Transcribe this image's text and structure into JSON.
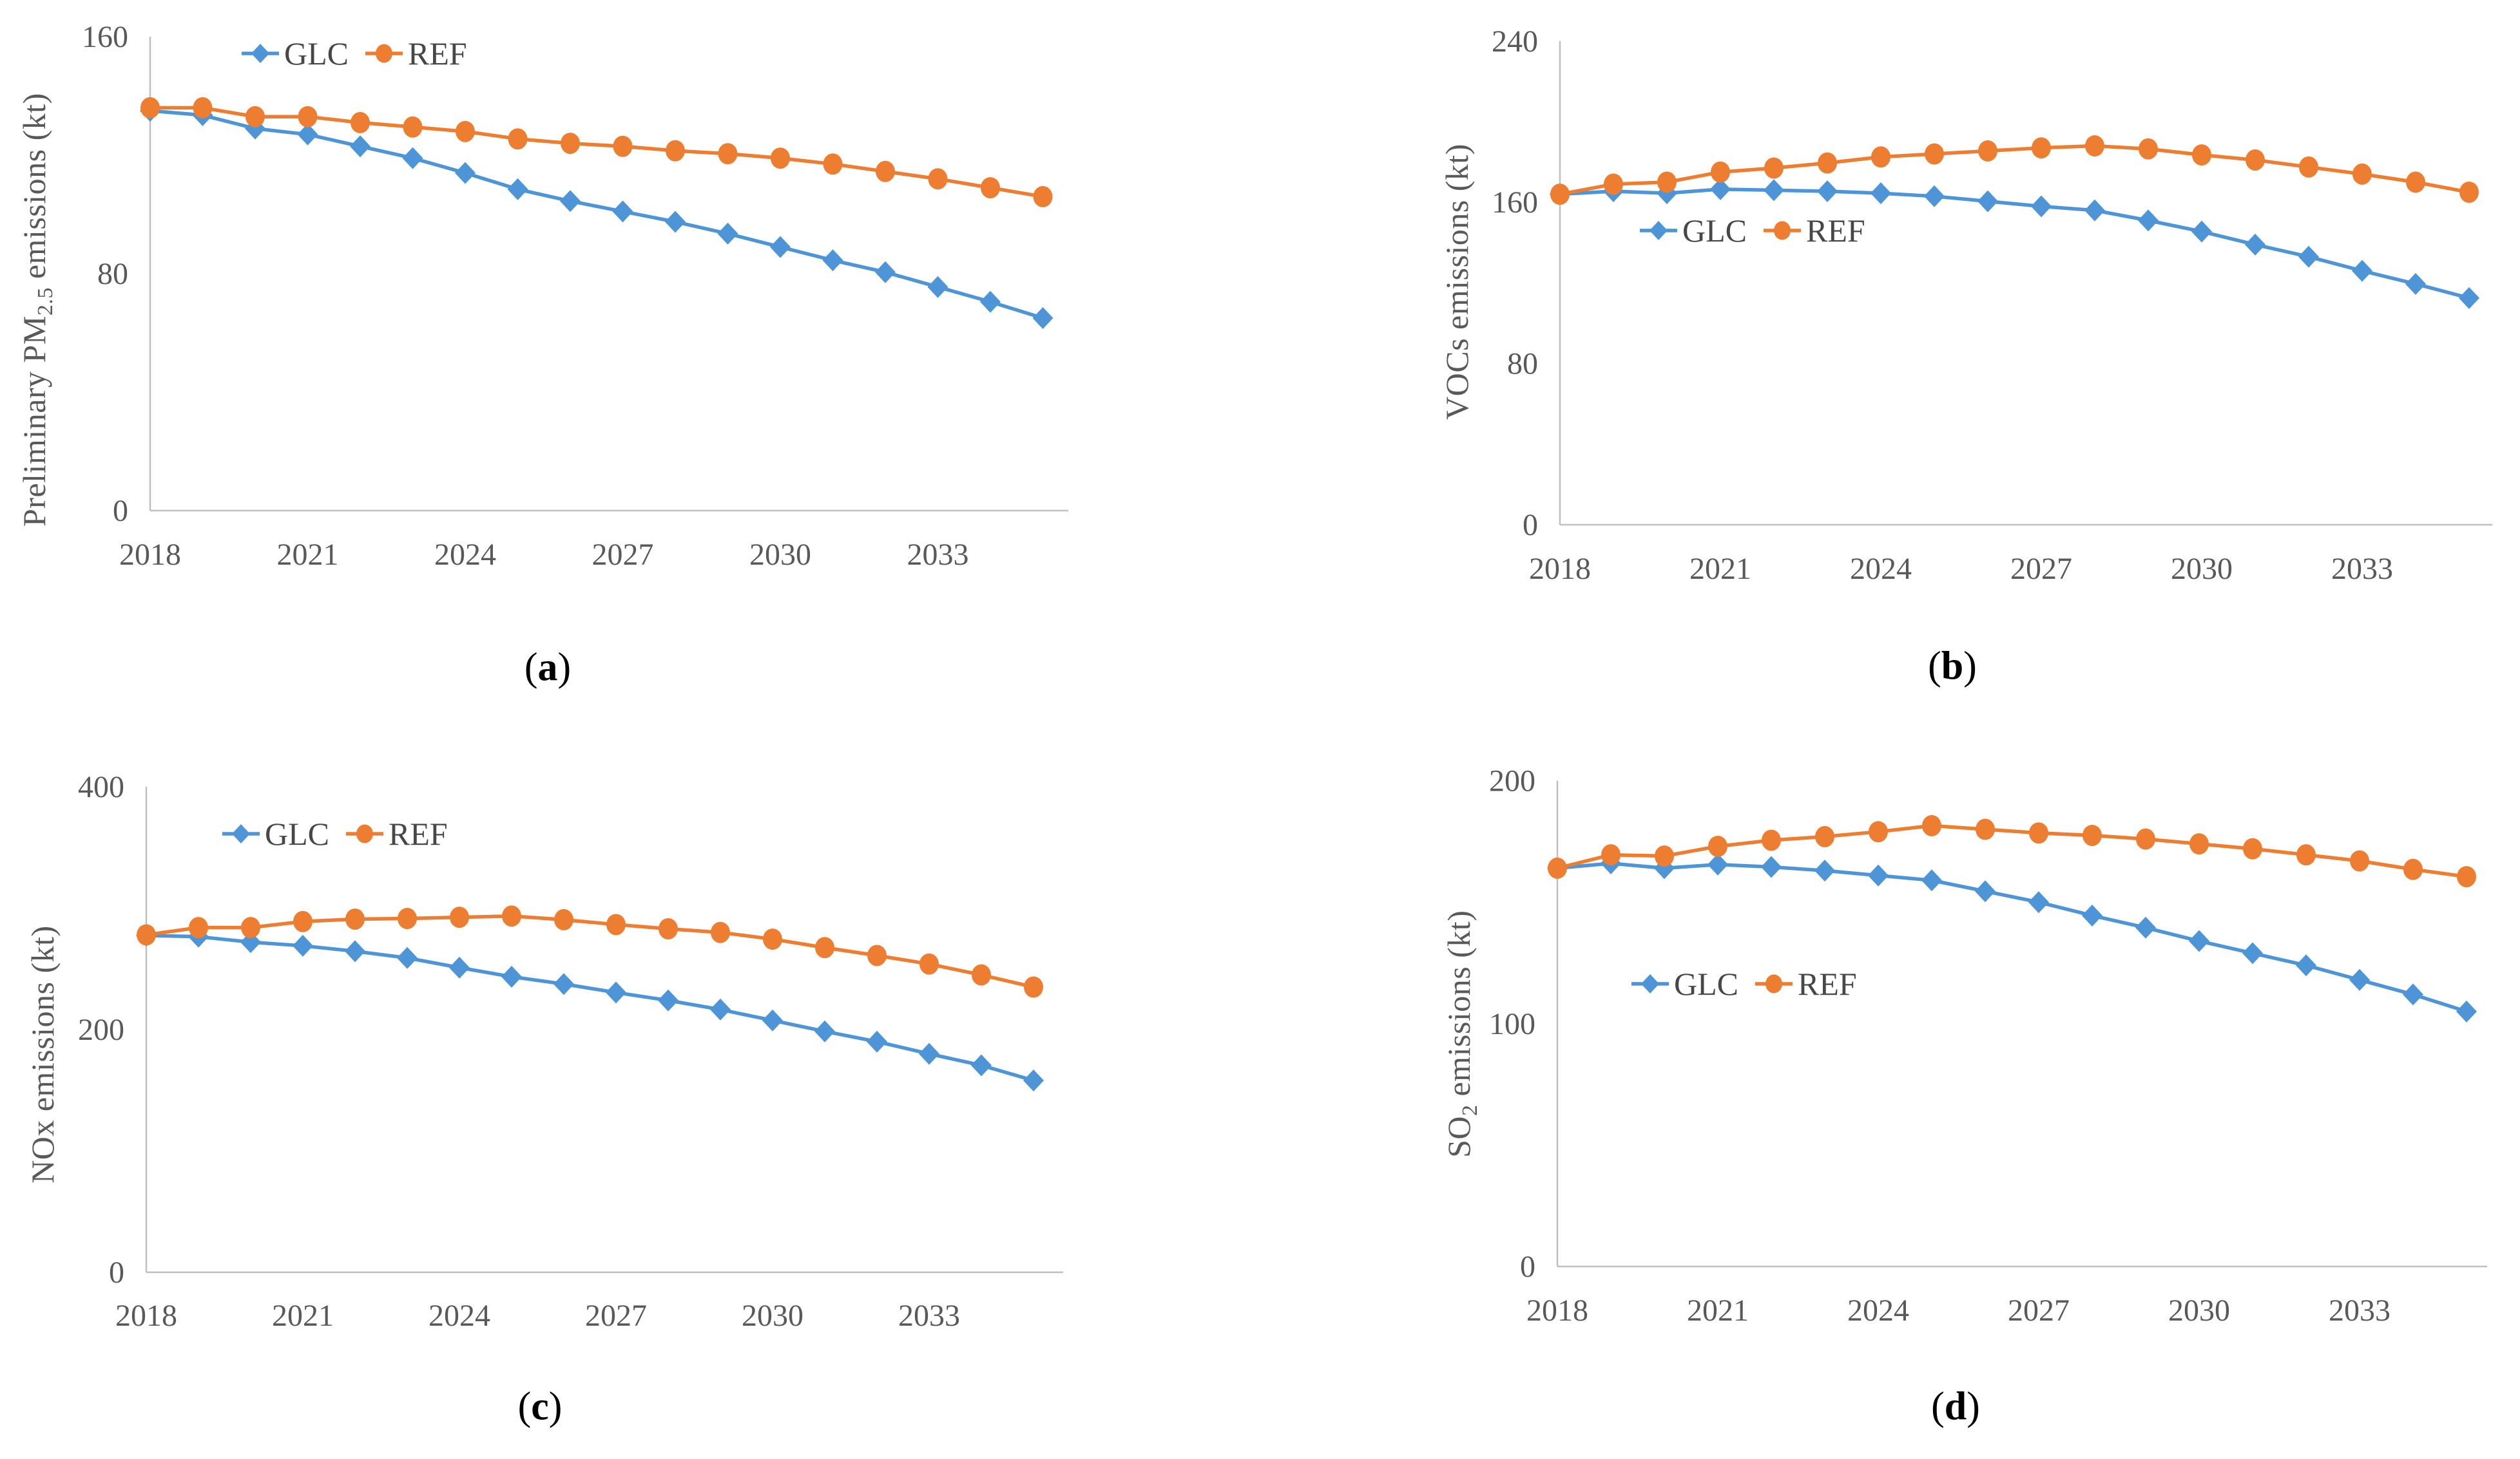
{
  "colors": {
    "glc": "#4E95D7",
    "ref": "#ED7D31",
    "axis_line": "#BFBFBF",
    "tick_text": "#595959",
    "legend_text": "#474747",
    "caption_text": "#000000",
    "background": "#FFFFFF"
  },
  "chart_data": [
    {
      "id": "a",
      "type": "line",
      "ylabel": "Preliminary PM2.5 emissions (kt)",
      "ylabel_parts": {
        "pre": "Preliminary PM",
        "sub": "2.5",
        "suf": " emissions (kt)"
      },
      "caption_parts": {
        "pre": "(",
        "letter": "a",
        "suf": ")"
      },
      "xlabel": "",
      "x": [
        2018,
        2019,
        2020,
        2021,
        2022,
        2023,
        2024,
        2025,
        2026,
        2027,
        2028,
        2029,
        2030,
        2031,
        2032,
        2033,
        2034,
        2035
      ],
      "xticks": [
        2018,
        2021,
        2024,
        2027,
        2030,
        2033
      ],
      "yticks": [
        0,
        80,
        160
      ],
      "ylim": [
        0,
        160
      ],
      "grid": false,
      "legend_position": "inside-top-left",
      "series": [
        {
          "name": "GLC",
          "marker": "diamond",
          "values": [
            135,
            133.5,
            129,
            127,
            123,
            119,
            114,
            108.5,
            104.5,
            101,
            97.5,
            93.5,
            89,
            84.5,
            80.5,
            75.5,
            70.5,
            65
          ]
        },
        {
          "name": "REF",
          "marker": "circle",
          "values": [
            136,
            136,
            133,
            133,
            131,
            129.5,
            128,
            125.5,
            124,
            123,
            121.5,
            120.5,
            119,
            117,
            114.5,
            112,
            109,
            106
          ]
        }
      ]
    },
    {
      "id": "b",
      "type": "line",
      "ylabel": "VOCs emissions (kt)",
      "ylabel_parts": {
        "pre": "VOCs emissions (kt)",
        "sub": "",
        "suf": ""
      },
      "caption_parts": {
        "pre": "(",
        "letter": "b",
        "suf": ")"
      },
      "xlabel": "",
      "x": [
        2018,
        2019,
        2020,
        2021,
        2022,
        2023,
        2024,
        2025,
        2026,
        2027,
        2028,
        2029,
        2030,
        2031,
        2032,
        2033,
        2034,
        2035
      ],
      "xticks": [
        2018,
        2021,
        2024,
        2027,
        2030,
        2033
      ],
      "yticks": [
        0,
        80,
        160,
        240
      ],
      "ylim": [
        0,
        240
      ],
      "grid": false,
      "legend_position": "inside-left-middle",
      "series": [
        {
          "name": "GLC",
          "marker": "diamond",
          "values": [
            164,
            165.5,
            164.5,
            166.5,
            166,
            165.5,
            164.5,
            163,
            160.5,
            158,
            156,
            151,
            145.5,
            139,
            133,
            126,
            119.5,
            112.5
          ]
        },
        {
          "name": "REF",
          "marker": "circle",
          "values": [
            164,
            169,
            170,
            175,
            177,
            179.5,
            182.5,
            184,
            185.5,
            187,
            188,
            186.5,
            183.5,
            181,
            177.5,
            174,
            170,
            165
          ]
        }
      ]
    },
    {
      "id": "c",
      "type": "line",
      "ylabel": "NOx emissions (kt)",
      "ylabel_parts": {
        "pre": "NOx emissions (kt)",
        "sub": "",
        "suf": ""
      },
      "caption_parts": {
        "pre": "(",
        "letter": "c",
        "suf": ")"
      },
      "xlabel": "",
      "x": [
        2018,
        2019,
        2020,
        2021,
        2022,
        2023,
        2024,
        2025,
        2026,
        2027,
        2028,
        2029,
        2030,
        2031,
        2032,
        2033,
        2034,
        2035
      ],
      "xticks": [
        2018,
        2021,
        2024,
        2027,
        2030,
        2033
      ],
      "yticks": [
        0,
        200,
        400
      ],
      "ylim": [
        0,
        400
      ],
      "grid": false,
      "legend_position": "inside-top-left",
      "series": [
        {
          "name": "GLC",
          "marker": "diamond",
          "values": [
            277.5,
            276.5,
            272,
            269,
            264.5,
            259,
            251,
            243.5,
            237.5,
            230.5,
            224,
            216.5,
            207.5,
            198.5,
            190,
            180,
            170.5,
            158
          ]
        },
        {
          "name": "REF",
          "marker": "circle",
          "values": [
            278,
            284,
            284,
            289,
            291,
            291.5,
            292.5,
            293.5,
            290.5,
            286.5,
            283,
            280,
            274.5,
            267.5,
            261,
            254,
            245,
            235
          ]
        }
      ]
    },
    {
      "id": "d",
      "type": "line",
      "ylabel": "SO2 emissions (kt)",
      "ylabel_parts": {
        "pre": "SO",
        "sub": "2",
        "suf": " emissions (kt)"
      },
      "caption_parts": {
        "pre": "(",
        "letter": "d",
        "suf": ")"
      },
      "xlabel": "",
      "x": [
        2018,
        2019,
        2020,
        2021,
        2022,
        2023,
        2024,
        2025,
        2026,
        2027,
        2028,
        2029,
        2030,
        2031,
        2032,
        2033,
        2034,
        2035
      ],
      "xticks": [
        2018,
        2021,
        2024,
        2027,
        2030,
        2033
      ],
      "yticks": [
        0,
        100,
        200
      ],
      "ylim": [
        0,
        200
      ],
      "grid": false,
      "legend_position": "inside-left-middle",
      "series": [
        {
          "name": "GLC",
          "marker": "diamond",
          "values": [
            164,
            166,
            164,
            165.5,
            164.5,
            163,
            161,
            159,
            154.5,
            150,
            144.5,
            139.5,
            134,
            129,
            124,
            118,
            112,
            105
          ]
        },
        {
          "name": "REF",
          "marker": "circle",
          "values": [
            164,
            169.5,
            169,
            173,
            175.5,
            177,
            179,
            181.5,
            180,
            178.5,
            177.5,
            176,
            174,
            172,
            169.5,
            167,
            163.5,
            160.5
          ]
        }
      ]
    }
  ]
}
